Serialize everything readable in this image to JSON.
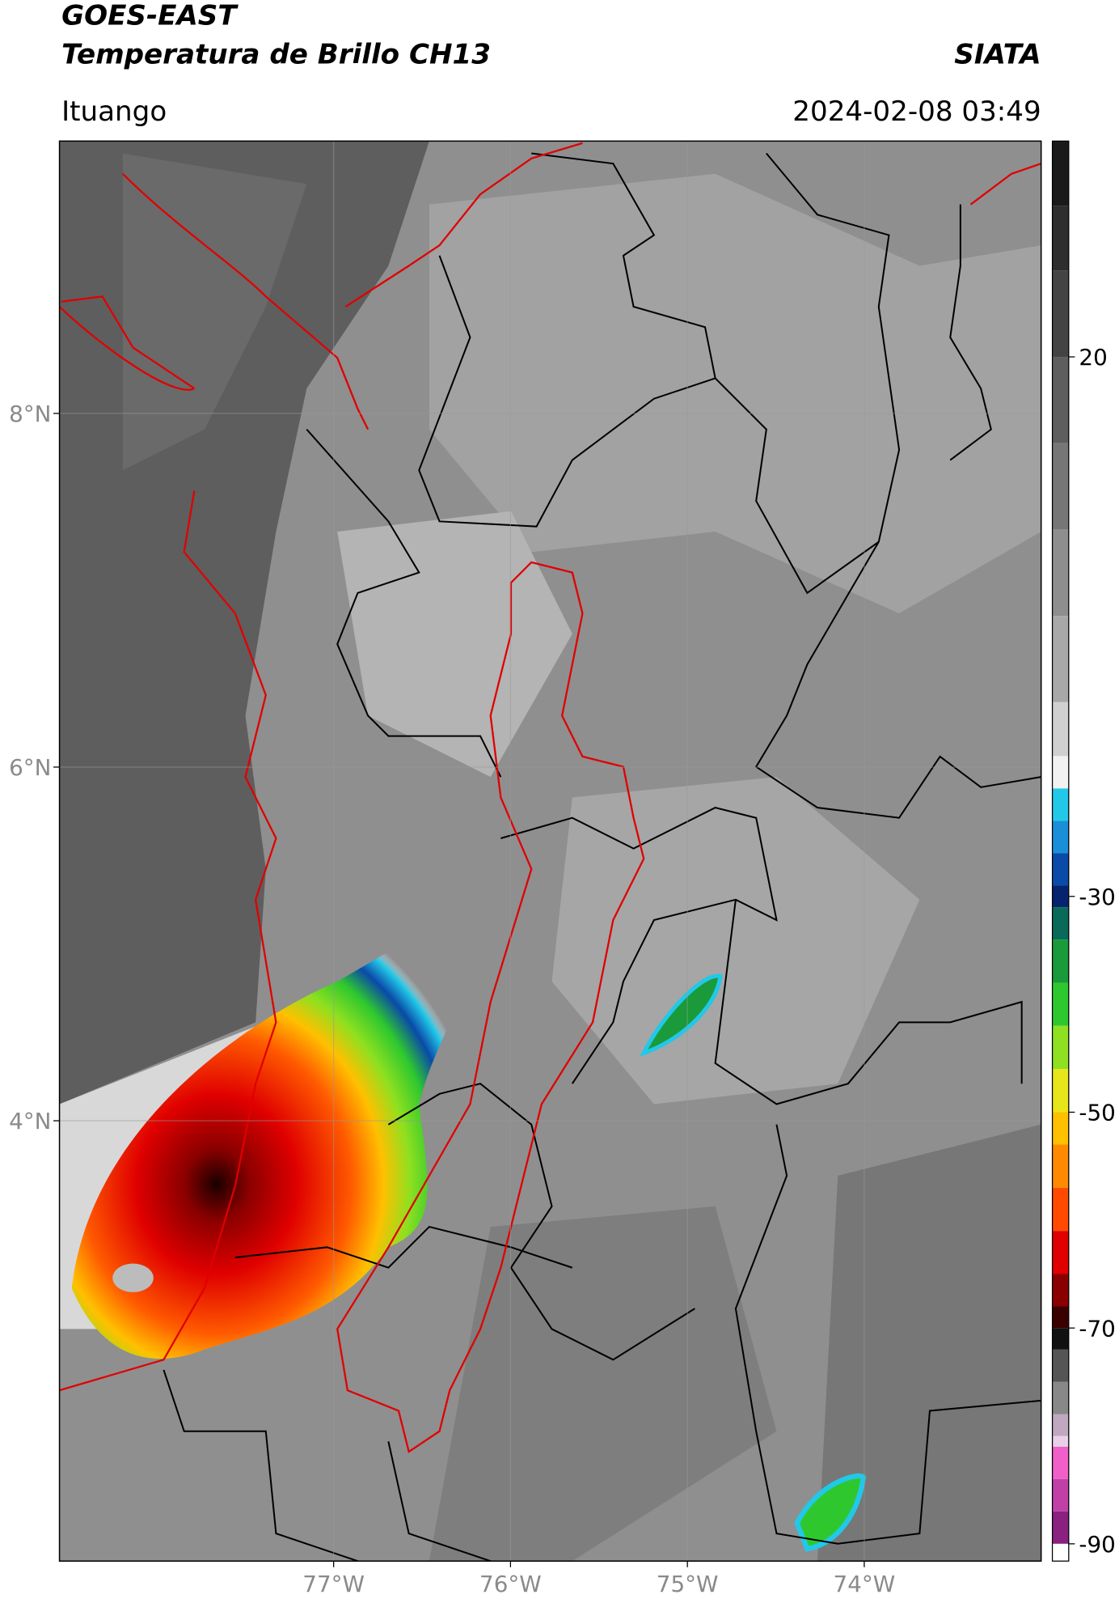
{
  "header": {
    "satellite": "GOES-EAST",
    "product": "Temperatura de Brillo CH13",
    "agency": "SIATA",
    "region": "Ituango",
    "datetime": "2024-02-08 03:49"
  },
  "map": {
    "xlim": [
      -78.55,
      -73.0
    ],
    "ylim": [
      1.51,
      9.54
    ],
    "xticks": [
      {
        "value": -77,
        "label": "77°W"
      },
      {
        "value": -76,
        "label": "76°W"
      },
      {
        "value": -75,
        "label": "75°W"
      },
      {
        "value": -74,
        "label": "74°W"
      }
    ],
    "yticks": [
      {
        "value": 8,
        "label": "8°N"
      },
      {
        "value": 6,
        "label": "6°N"
      },
      {
        "value": 4,
        "label": "4°N"
      }
    ],
    "grid": true
  },
  "colorbar": {
    "lim": [
      -91.6,
      40
    ],
    "ticks": [
      20,
      -30,
      -50,
      -70,
      -90
    ],
    "bands": [
      {
        "top": 40,
        "color": "#1a1a1a"
      },
      {
        "top": 34,
        "color": "#2e2e2e"
      },
      {
        "top": 28,
        "color": "#444444"
      },
      {
        "top": 20,
        "color": "#5e5e5e"
      },
      {
        "top": 12,
        "color": "#767676"
      },
      {
        "top": 4,
        "color": "#8e8e8e"
      },
      {
        "top": -4,
        "color": "#a8a8a8"
      },
      {
        "top": -12,
        "color": "#d0d0d0"
      },
      {
        "top": -17,
        "color": "#f2f2f2"
      },
      {
        "top": -20,
        "color": "#22c8e8"
      },
      {
        "top": -23,
        "color": "#1a8fd8"
      },
      {
        "top": -26,
        "color": "#0a4aa8"
      },
      {
        "top": -29,
        "color": "#06236e"
      },
      {
        "top": -31,
        "color": "#0a6a5a"
      },
      {
        "top": -34,
        "color": "#1a9a3a"
      },
      {
        "top": -38,
        "color": "#2ec82e"
      },
      {
        "top": -42,
        "color": "#8ee020"
      },
      {
        "top": -46,
        "color": "#e6e61a"
      },
      {
        "top": -50,
        "color": "#ffc000"
      },
      {
        "top": -53,
        "color": "#ff8a00"
      },
      {
        "top": -57,
        "color": "#ff4a00"
      },
      {
        "top": -61,
        "color": "#e00000"
      },
      {
        "top": -65,
        "color": "#8a0000"
      },
      {
        "top": -68,
        "color": "#3a0000"
      },
      {
        "top": -70,
        "color": "#111111"
      },
      {
        "top": -72,
        "color": "#555555"
      },
      {
        "top": -75,
        "color": "#888888"
      },
      {
        "top": -78,
        "color": "#c0a8c0"
      },
      {
        "top": -80,
        "color": "#e8d0e8"
      },
      {
        "top": -81,
        "color": "#f060c8"
      },
      {
        "top": -84,
        "color": "#c040a8"
      },
      {
        "top": -87,
        "color": "#8a2080"
      },
      {
        "top": -90,
        "color": "#ffffff"
      }
    ]
  }
}
